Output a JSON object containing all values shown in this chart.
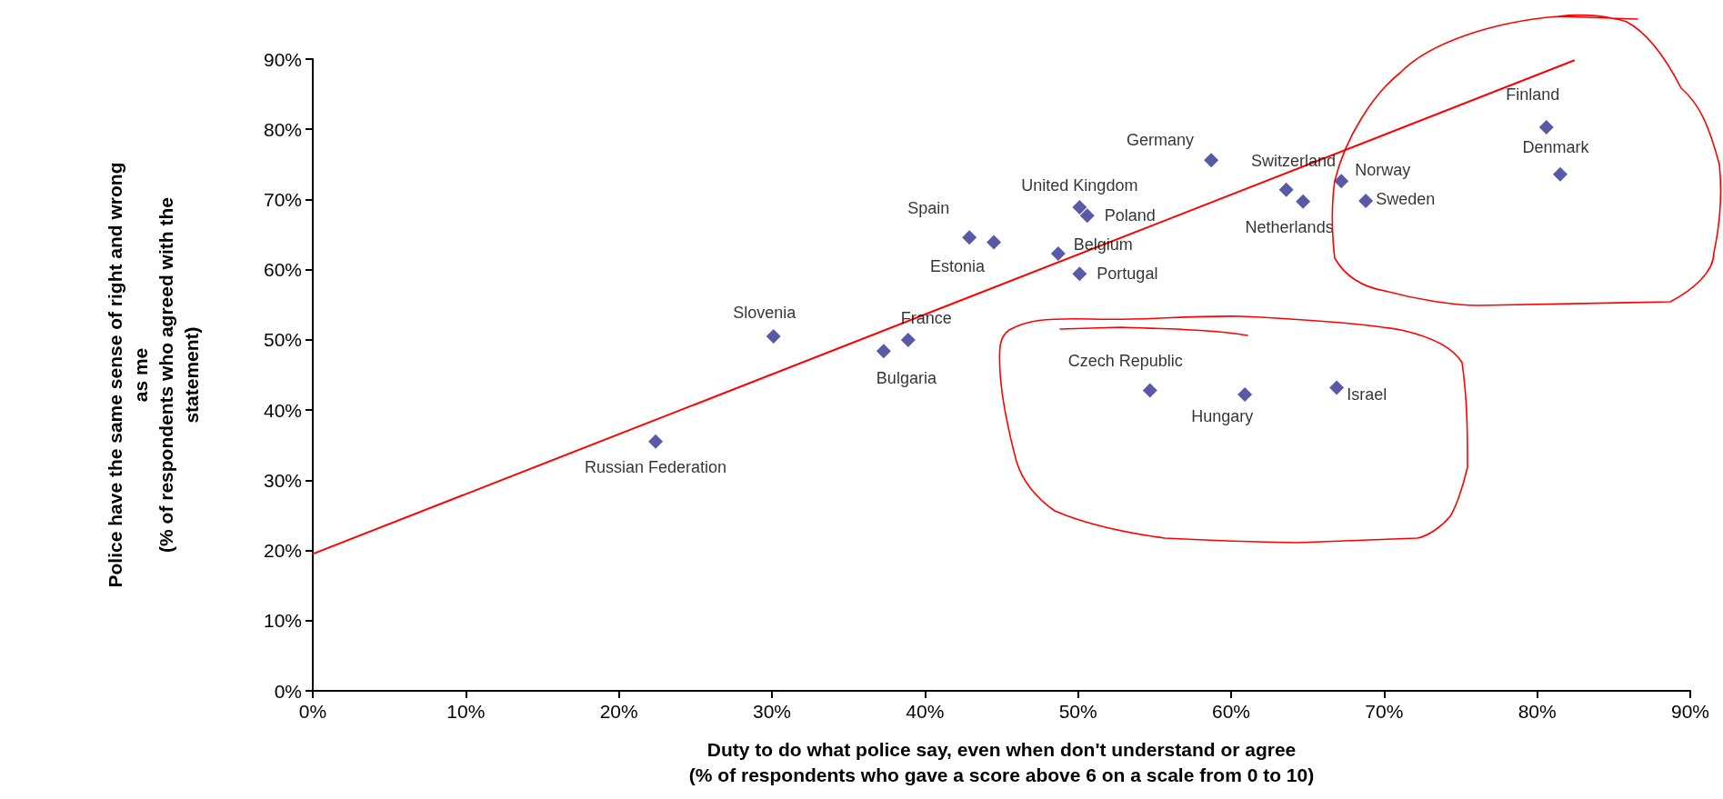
{
  "chart_data": {
    "type": "scatter",
    "xlabel": "Duty to do what police say, even when don't understand or agree\n(% of respondents who gave a score above 6 on a scale from 0 to 10)",
    "ylabel": "Police have the same sense of right and wrong\nas me\n(% of respondents who agreed with the\nstatement)",
    "xlim": [
      0,
      90
    ],
    "ylim": [
      0,
      90
    ],
    "xticks": [
      {
        "value": 0,
        "label": "0%"
      },
      {
        "value": 10,
        "label": "10%"
      },
      {
        "value": 20,
        "label": "20%"
      },
      {
        "value": 30,
        "label": "30%"
      },
      {
        "value": 40,
        "label": "40%"
      },
      {
        "value": 50,
        "label": "50%"
      },
      {
        "value": 60,
        "label": "60%"
      },
      {
        "value": 70,
        "label": "70%"
      },
      {
        "value": 80,
        "label": "80%"
      },
      {
        "value": 90,
        "label": "90%"
      }
    ],
    "yticks": [
      {
        "value": 0,
        "label": "0%"
      },
      {
        "value": 10,
        "label": "10%"
      },
      {
        "value": 20,
        "label": "20%"
      },
      {
        "value": 30,
        "label": "30%"
      },
      {
        "value": 40,
        "label": "40%"
      },
      {
        "value": 50,
        "label": "50%"
      },
      {
        "value": 60,
        "label": "60%"
      },
      {
        "value": 70,
        "label": "70%"
      },
      {
        "value": 80,
        "label": "80%"
      },
      {
        "value": 90,
        "label": "90%"
      }
    ],
    "grid": false,
    "marker": "diamond",
    "series": [
      {
        "type": "scatter",
        "color": "#2e3192",
        "x": [
          22.4,
          30.1,
          37.3,
          38.9,
          42.9,
          44.5,
          48.7,
          50.1,
          50.6,
          50.1,
          58.7,
          63.6,
          64.7,
          67.2,
          68.8,
          54.7,
          60.9,
          66.9,
          80.6,
          81.5
        ],
        "values": [
          35.5,
          50.5,
          48.4,
          50.0,
          64.6,
          63.9,
          62.3,
          68.9,
          67.7,
          59.4,
          75.6,
          71.4,
          69.7,
          72.6,
          69.8,
          42.8,
          42.2,
          43.2,
          80.3,
          73.6
        ],
        "value_labels": [
          "Russian Federation",
          "Slovenia",
          "Bulgaria",
          "France",
          "Spain",
          "Estonia",
          "Belgium",
          "United Kingdom",
          "Poland",
          "Portugal",
          "Germany",
          "Switzerland",
          "Netherlands",
          "Norway",
          "Sweden",
          "Czech Republic",
          "Hungary",
          "Israel",
          "Finland",
          "Denmark"
        ]
      },
      {
        "type": "line",
        "color": "#ff0000",
        "marker": "none",
        "line_style": "solid",
        "x": [
          0,
          82.4
        ],
        "values": [
          19.5,
          89.8
        ]
      }
    ]
  }
}
